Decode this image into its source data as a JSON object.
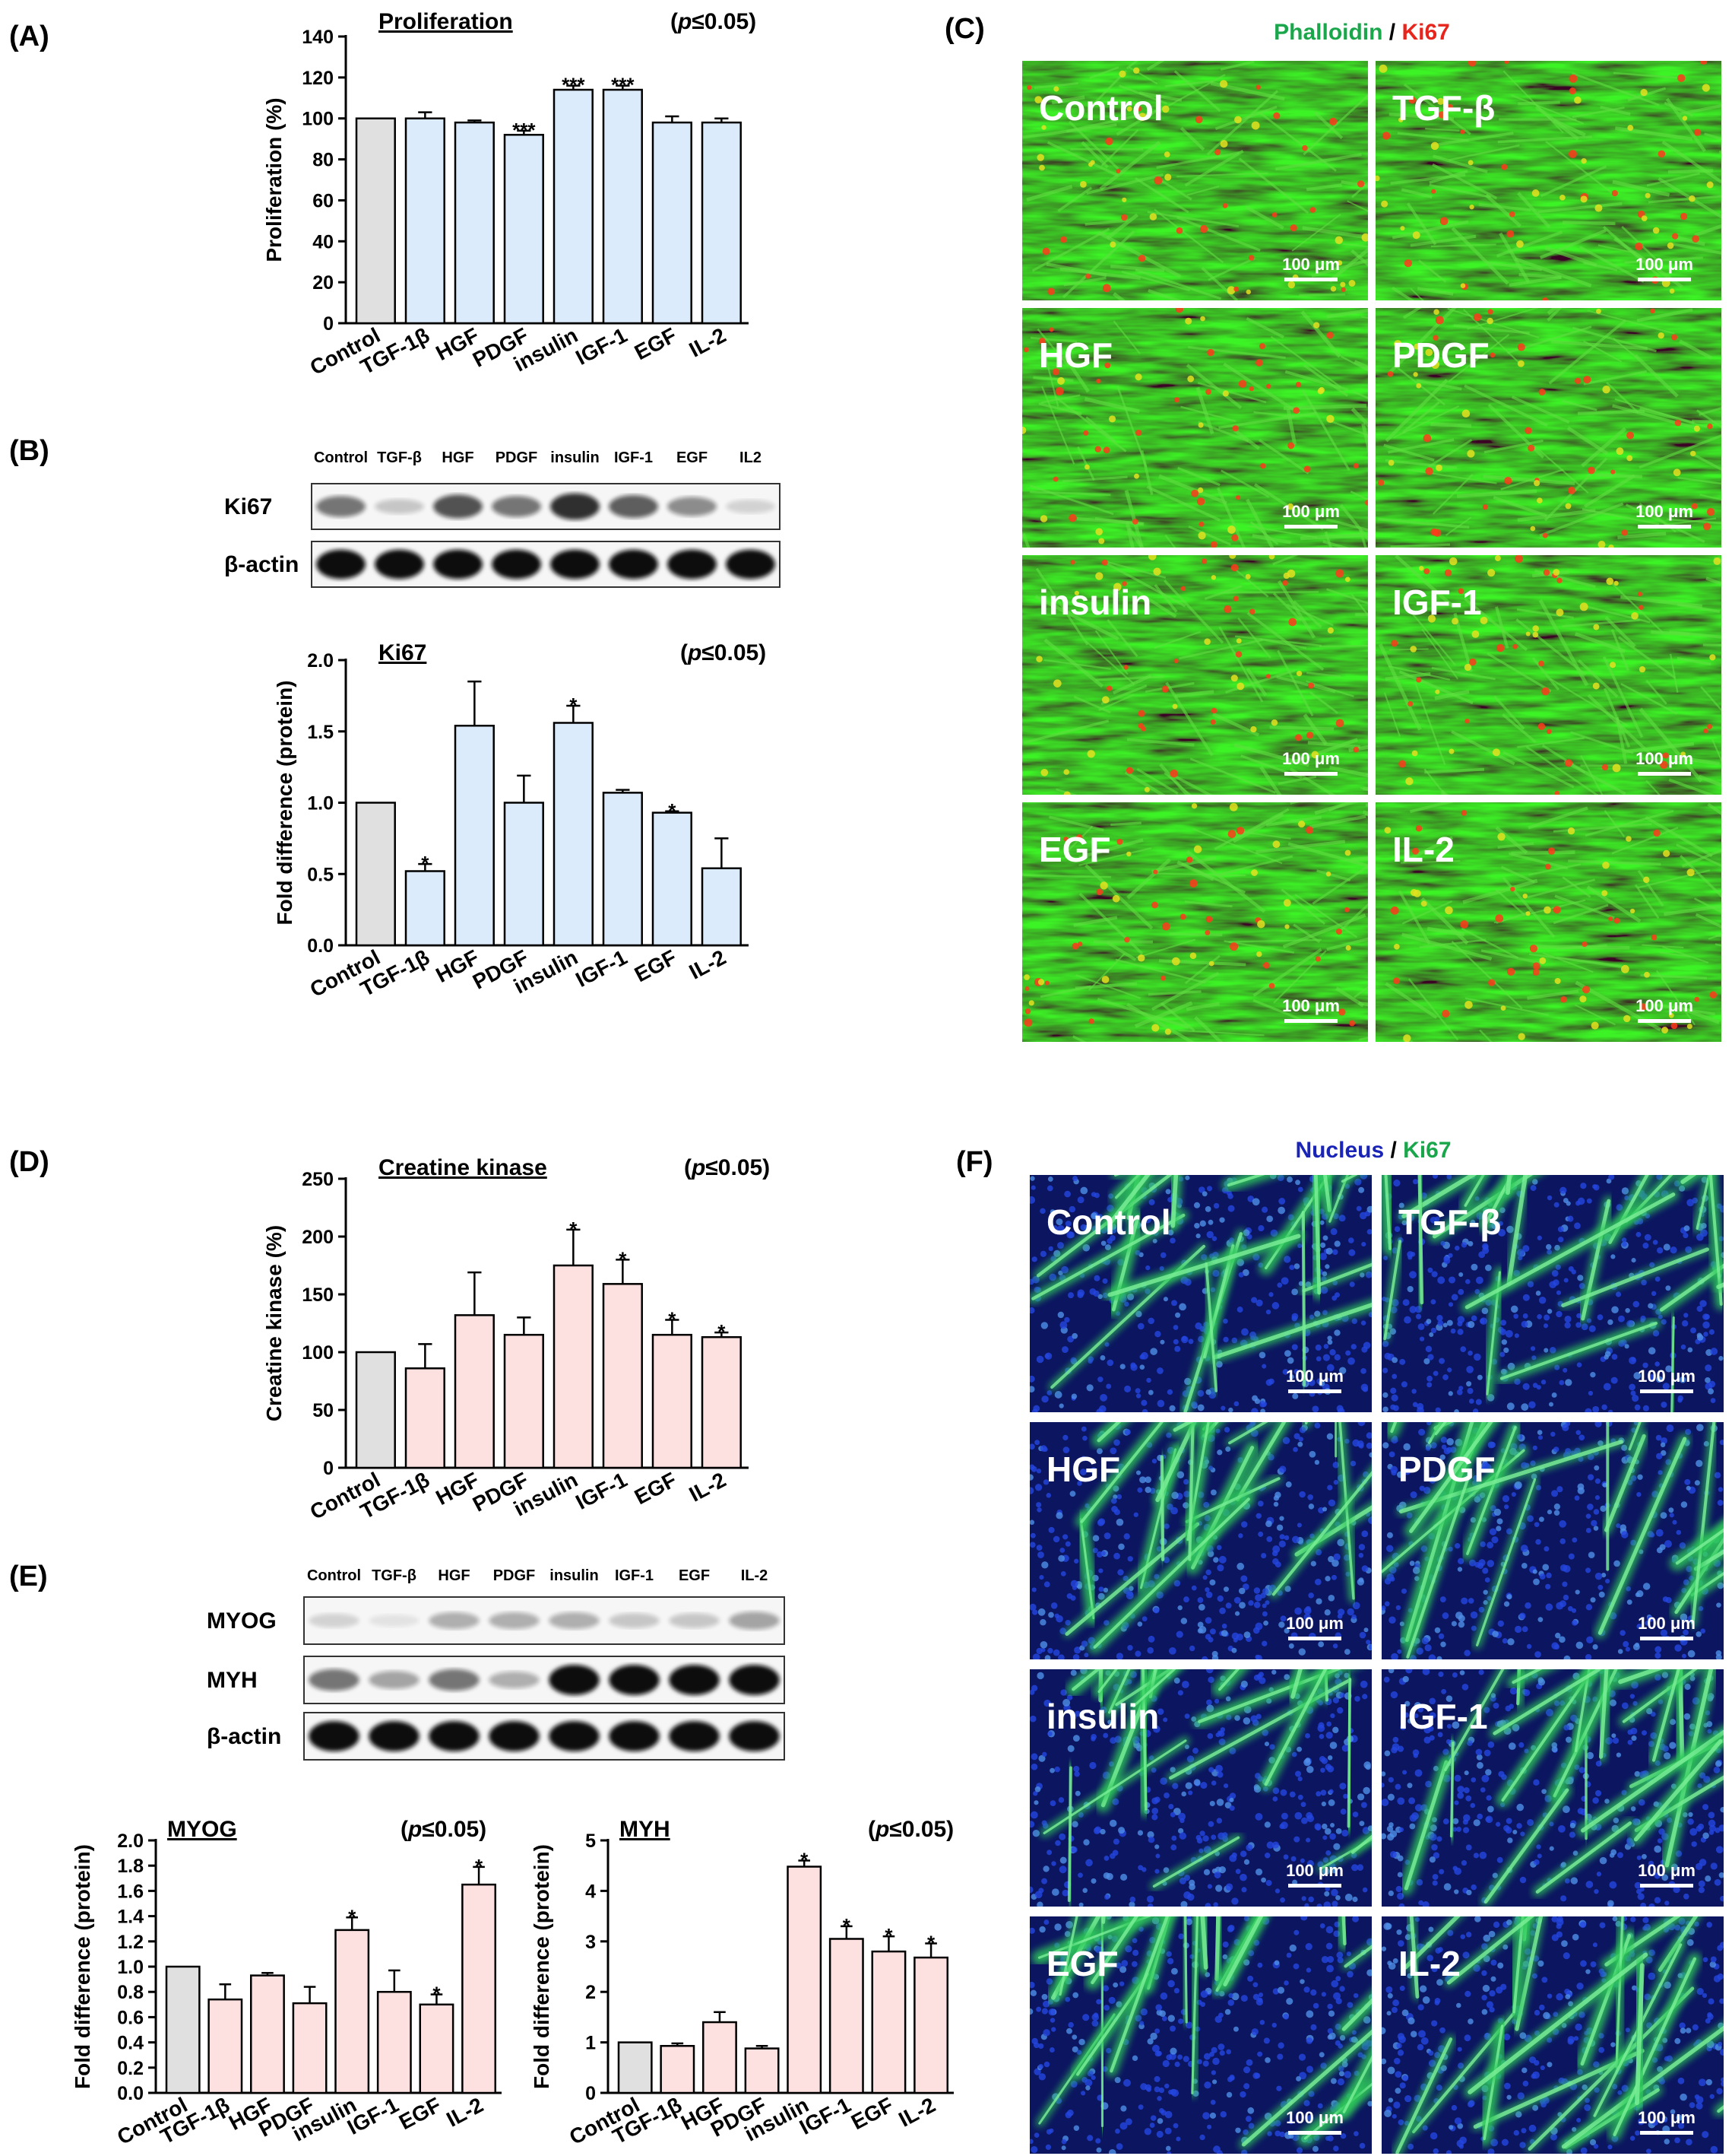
{
  "panels": {
    "A": {
      "letter": "(A)",
      "chart_data": {
        "type": "bar",
        "title": "Proliferation",
        "significance": "(p≤0.05)",
        "ylabel": "Proliferation (%)",
        "ylim": [
          0,
          140
        ],
        "yticks": [
          0,
          20,
          40,
          60,
          80,
          100,
          120,
          140
        ],
        "categories": [
          "Control",
          "TGF-1β",
          "HGF",
          "PDGF",
          "insulin",
          "IGF-1",
          "EGF",
          "IL-2"
        ],
        "values": [
          100,
          100,
          98,
          92,
          114,
          114,
          98,
          98
        ],
        "errors": [
          0,
          3,
          1,
          2,
          2,
          2,
          3,
          2
        ],
        "stars": [
          "",
          "",
          "",
          "***",
          "***",
          "***",
          "",
          ""
        ]
      }
    },
    "B": {
      "letter": "(B)",
      "blot": {
        "lanes": [
          "Control",
          "TGF-β",
          "HGF",
          "PDGF",
          "insulin",
          "IGF-1",
          "EGF",
          "IL2"
        ],
        "rows": [
          {
            "label": "Ki67",
            "intensity": [
              0.55,
              0.2,
              0.7,
              0.55,
              0.85,
              0.65,
              0.45,
              0.15
            ]
          },
          {
            "label": "β-actin",
            "intensity": [
              1,
              1,
              1,
              1,
              1,
              1,
              1,
              1
            ]
          }
        ]
      },
      "chart_data": {
        "type": "bar",
        "title": "Ki67",
        "significance": "(p≤0.05)",
        "ylabel": "Fold difference (protein)",
        "ylim": [
          0,
          2.0
        ],
        "yticks": [
          "0.0",
          "0.5",
          "1.0",
          "1.5",
          "2.0"
        ],
        "categories": [
          "Control",
          "TGF-1β",
          "HGF",
          "PDGF",
          "insulin",
          "IGF-1",
          "EGF",
          "IL-2"
        ],
        "values": [
          1.0,
          0.52,
          1.54,
          1.0,
          1.56,
          1.07,
          0.93,
          0.54
        ],
        "errors": [
          0,
          0.05,
          0.31,
          0.19,
          0.12,
          0.02,
          0.01,
          0.21
        ],
        "stars": [
          "",
          "*",
          "",
          "",
          "*",
          "",
          "*",
          ""
        ]
      }
    },
    "C": {
      "letter": "(C)",
      "legend": {
        "a": "Phalloidin",
        "sep": " / ",
        "b": "Ki67"
      },
      "colors": {
        "a": "#1aa64a",
        "b": "#e8251c"
      },
      "tiles": [
        "Control",
        "TGF-β",
        "HGF",
        "PDGF",
        "insulin",
        "IGF-1",
        "EGF",
        "IL-2"
      ],
      "scale": "100 μm"
    },
    "D": {
      "letter": "(D)",
      "chart_data": {
        "type": "bar",
        "title": "Creatine kinase",
        "significance": "(p≤0.05)",
        "ylabel": "Creatine kinase (%)",
        "ylim": [
          0,
          250
        ],
        "yticks": [
          0,
          50,
          100,
          150,
          200,
          250
        ],
        "categories": [
          "Control",
          "TGF-1β",
          "HGF",
          "PDGF",
          "insulin",
          "IGF-1",
          "EGF",
          "IL-2"
        ],
        "values": [
          100,
          86,
          132,
          115,
          175,
          159,
          115,
          113
        ],
        "errors": [
          0,
          21,
          37,
          15,
          31,
          21,
          13,
          4
        ],
        "stars": [
          "",
          "",
          "",
          "",
          "*",
          "*",
          "*",
          "*"
        ]
      }
    },
    "E": {
      "letter": "(E)",
      "blot": {
        "lanes": [
          "Control",
          "TGF-β",
          "HGF",
          "PDGF",
          "insulin",
          "IGF-1",
          "EGF",
          "IL-2"
        ],
        "rows": [
          {
            "label": "MYOG",
            "intensity": [
              0.15,
              0.05,
              0.3,
              0.3,
              0.3,
              0.2,
              0.2,
              0.35
            ]
          },
          {
            "label": "MYH",
            "intensity": [
              0.55,
              0.35,
              0.55,
              0.3,
              1,
              1,
              1,
              1
            ]
          },
          {
            "label": "β-actin",
            "intensity": [
              1,
              1,
              1,
              1,
              1,
              1,
              1,
              1
            ]
          }
        ]
      },
      "chart_myog": {
        "type": "bar",
        "title": "MYOG",
        "significance": "(p≤0.05)",
        "ylabel": "Fold difference (protein)",
        "ylim": [
          0,
          2.0
        ],
        "yticks": [
          "0.0",
          "0.2",
          "0.4",
          "0.6",
          "0.8",
          "1.0",
          "1.2",
          "1.4",
          "1.6",
          "1.8",
          "2.0"
        ],
        "categories": [
          "Control",
          "TGF-1β",
          "HGF",
          "PDGF",
          "insulin",
          "IGF-1",
          "EGF",
          "IL-2"
        ],
        "values": [
          1.0,
          0.74,
          0.93,
          0.71,
          1.29,
          0.8,
          0.7,
          1.65
        ],
        "errors": [
          0,
          0.12,
          0.02,
          0.13,
          0.1,
          0.17,
          0.08,
          0.14
        ],
        "stars": [
          "",
          "",
          "",
          "",
          "*",
          "",
          "*",
          "*"
        ]
      },
      "chart_myh": {
        "type": "bar",
        "title": "MYH",
        "significance": "(p≤0.05)",
        "ylabel": "Fold difference (protein)",
        "ylim": [
          0,
          5
        ],
        "yticks": [
          0,
          1,
          2,
          3,
          4,
          5
        ],
        "categories": [
          "Control",
          "TGF-1β",
          "HGF",
          "PDGF",
          "insulin",
          "IGF-1",
          "EGF",
          "IL-2"
        ],
        "values": [
          1.0,
          0.93,
          1.4,
          0.88,
          4.48,
          3.05,
          2.8,
          2.68
        ],
        "errors": [
          0,
          0.05,
          0.2,
          0.05,
          0.12,
          0.25,
          0.3,
          0.28
        ],
        "stars": [
          "",
          "",
          "",
          "",
          "*",
          "*",
          "*",
          "*"
        ]
      }
    },
    "F": {
      "letter": "(F)",
      "legend": {
        "a": "Nucleus",
        "sep": " / ",
        "b": "Ki67"
      },
      "colors": {
        "a": "#1a25b8",
        "b": "#1aa64a"
      },
      "tiles": [
        "Control",
        "TGF-β",
        "HGF",
        "PDGF",
        "insulin",
        "IGF-1",
        "EGF",
        "IL-2"
      ],
      "scale": "100 μm"
    }
  },
  "colors": {
    "control_bar": "#e0e0e0",
    "blue_bar": "#dcebfb",
    "pink_bar": "#fde0e0",
    "bar_stroke": "#000000",
    "blot_band": "#111111"
  }
}
